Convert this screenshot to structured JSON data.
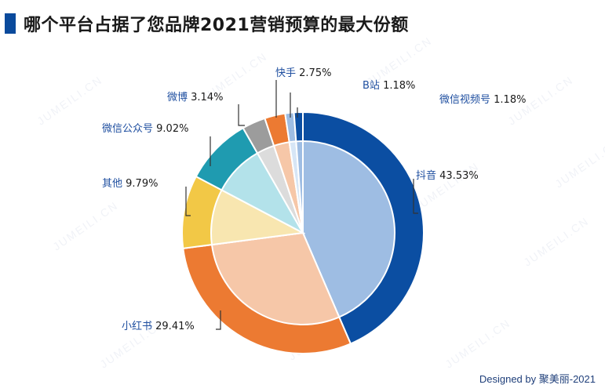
{
  "title": "哪个平台占据了您品牌2021营销预算的最大份额",
  "watermark": "JUMEILI.CN",
  "footer": "Designed by 聚美丽-2021",
  "colors": {
    "accent": "#0a4a9c"
  },
  "chart_data": {
    "type": "pie",
    "title": "哪个平台占据了您品牌2021营销预算的最大份额",
    "unit": "%",
    "slices": [
      {
        "label": "抖音",
        "value": 43.53,
        "display": "抖音 43.53%",
        "outer": "#0b4ea2",
        "inner": "#9ebde3"
      },
      {
        "label": "小红书",
        "value": 29.41,
        "display": "小红书 29.41%",
        "outer": "#ec7a32",
        "inner": "#f6c7a8"
      },
      {
        "label": "其他",
        "value": 9.79,
        "display": "其他 9.79%",
        "outer": "#f2c846",
        "inner": "#f8e6b0"
      },
      {
        "label": "微信公众号",
        "value": 9.02,
        "display": "微信公众号 9.02%",
        "outer": "#1f9bb0",
        "inner": "#b3e2ea"
      },
      {
        "label": "微博",
        "value": 3.14,
        "display": "微博 3.14%",
        "outer": "#9c9c9c",
        "inner": "#dcdcdc"
      },
      {
        "label": "快手",
        "value": 2.75,
        "display": "快手 2.75%",
        "outer": "#ec7a32",
        "inner": "#f6c7a8"
      },
      {
        "label": "B站",
        "value": 1.18,
        "display": "B站 1.18%",
        "outer": "#9ebde3",
        "inner": "#d7e6f6"
      },
      {
        "label": "微信视频号",
        "value": 1.18,
        "display": "微信视频号 1.18%",
        "outer": "#0b4ea2",
        "inner": "#9ebde3"
      }
    ]
  }
}
